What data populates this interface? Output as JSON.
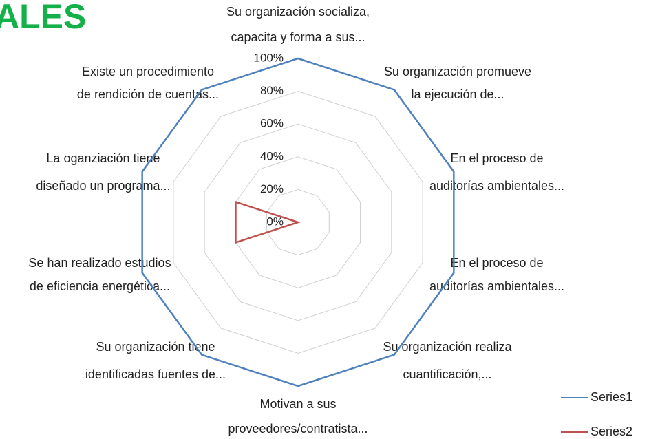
{
  "page_title": "ALES",
  "chart_data": {
    "type": "radar",
    "categories": [
      [
        "Su organización socializa,",
        "capacita y forma a sus..."
      ],
      [
        "Su organización promueve",
        "la ejecución de..."
      ],
      [
        "En el proceso de",
        "auditorías ambientales..."
      ],
      [
        "En el proceso de",
        "auditorías ambientales..."
      ],
      [
        "Su organización realiza",
        "cuantificación,..."
      ],
      [
        "Motivan a sus",
        "proveedores/contratista..."
      ],
      [
        "Su organización tiene",
        "identificadas fuentes de..."
      ],
      [
        "Se han realizado estudios",
        "de eficiencia energética..."
      ],
      [
        "La oganziación tiene",
        "diseñado un programa..."
      ],
      [
        "Existe un procedimiento",
        "de rendición de cuentas..."
      ]
    ],
    "series": [
      {
        "name": "Series1",
        "color": "#4f81bd",
        "values": [
          100,
          100,
          100,
          100,
          100,
          100,
          100,
          100,
          100,
          100
        ]
      },
      {
        "name": "Series2",
        "color": "#c0504d",
        "values": [
          0,
          0,
          0,
          0,
          0,
          0,
          0,
          40,
          40,
          0
        ]
      }
    ],
    "ylim": [
      0,
      100
    ],
    "yticks": [
      {
        "value": 0,
        "label": "0%"
      },
      {
        "value": 20,
        "label": "20%"
      },
      {
        "value": 40,
        "label": "40%"
      },
      {
        "value": 60,
        "label": "60%"
      },
      {
        "value": 80,
        "label": "80%"
      },
      {
        "value": 100,
        "label": "100%"
      }
    ],
    "grid": true,
    "legend": "right"
  }
}
